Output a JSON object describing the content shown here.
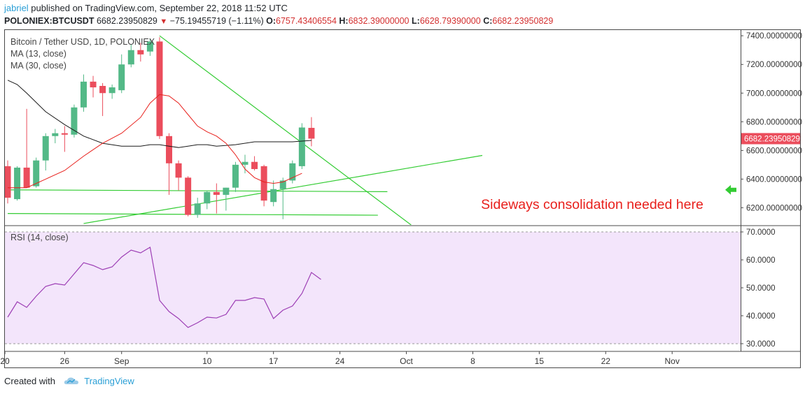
{
  "header": {
    "user": "jabriel",
    "published": " published on TradingView.com, September 22, 2018 11:52 UTC",
    "symbol": "POLONIEX:BTCUSDT",
    "last": "6682.23950829",
    "change": "−75.19455719 (−1.11%)",
    "o_label": "O:",
    "o_val": "6757.43406554",
    "h_label": "H:",
    "h_val": "6832.39000000",
    "l_label": "L:",
    "l_val": "6628.79390000",
    "c_label": "C:",
    "c_val": "6682.23950829"
  },
  "legend": {
    "title": "Bitcoin / Tether USD, 1D, POLONIEX",
    "ma13": "MA (13, close)",
    "ma30": "MA (30, close)",
    "rsi": "RSI (14, close)"
  },
  "annotation": "Sideways consolidation needed here",
  "footer": {
    "created": "Created with",
    "brand": "TradingView"
  },
  "colors": {
    "up": "#53b987",
    "down": "#eb4d5c",
    "ma13": "#e8201c",
    "ma30": "#1a1a1a",
    "trend": "#33cc33",
    "rsi": "#9d3fb5",
    "rsi_band": "#f3e5fb",
    "annotation": "#e8201c",
    "arrow": "#33cc33"
  },
  "chart_data": {
    "type": "candlestick",
    "price_axis": {
      "ylim": [
        6080,
        7440
      ],
      "ticks": [
        "7400.00000000",
        "7200.00000000",
        "7000.00000000",
        "6800.00000000",
        "6600.00000000",
        "6400.00000000",
        "6200.00000000"
      ],
      "last_label": "6682.23950829"
    },
    "rsi_axis": {
      "ylim": [
        28,
        72
      ],
      "ticks": [
        "70.0000",
        "60.0000",
        "50.0000",
        "40.0000",
        "30.0000"
      ],
      "band": [
        30,
        70
      ]
    },
    "x_ticks": [
      "20",
      "26",
      "Sep",
      "10",
      "17",
      "24",
      "Oct",
      "8",
      "15",
      "22",
      "Nov"
    ],
    "x_tick_days": [
      0,
      6,
      12,
      21,
      28,
      35,
      42,
      49,
      56,
      63,
      70
    ],
    "candles": [
      {
        "d": 0,
        "o": 6490,
        "h": 6530,
        "l": 6230,
        "c": 6270
      },
      {
        "d": 1,
        "o": 6260,
        "h": 6490,
        "l": 6250,
        "c": 6480
      },
      {
        "d": 2,
        "o": 6480,
        "h": 6890,
        "l": 6350,
        "c": 6340
      },
      {
        "d": 3,
        "o": 6350,
        "h": 6550,
        "l": 6340,
        "c": 6530
      },
      {
        "d": 4,
        "o": 6530,
        "h": 6720,
        "l": 6460,
        "c": 6700
      },
      {
        "d": 5,
        "o": 6700,
        "h": 6750,
        "l": 6650,
        "c": 6720
      },
      {
        "d": 6,
        "o": 6720,
        "h": 6770,
        "l": 6590,
        "c": 6710
      },
      {
        "d": 7,
        "o": 6710,
        "h": 6920,
        "l": 6690,
        "c": 6900
      },
      {
        "d": 8,
        "o": 6900,
        "h": 7130,
        "l": 6870,
        "c": 7080
      },
      {
        "d": 9,
        "o": 7080,
        "h": 7120,
        "l": 6970,
        "c": 7040
      },
      {
        "d": 10,
        "o": 7050,
        "h": 7070,
        "l": 6840,
        "c": 7000
      },
      {
        "d": 11,
        "o": 7000,
        "h": 7060,
        "l": 6960,
        "c": 7040
      },
      {
        "d": 12,
        "o": 7020,
        "h": 7270,
        "l": 7000,
        "c": 7200
      },
      {
        "d": 13,
        "o": 7200,
        "h": 7340,
        "l": 7180,
        "c": 7300
      },
      {
        "d": 14,
        "o": 7300,
        "h": 7350,
        "l": 7220,
        "c": 7270
      },
      {
        "d": 15,
        "o": 7290,
        "h": 7380,
        "l": 7260,
        "c": 7360
      },
      {
        "d": 16,
        "o": 7360,
        "h": 7390,
        "l": 6680,
        "c": 6700
      },
      {
        "d": 17,
        "o": 6700,
        "h": 6720,
        "l": 6290,
        "c": 6510
      },
      {
        "d": 18,
        "o": 6510,
        "h": 6530,
        "l": 6320,
        "c": 6410
      },
      {
        "d": 19,
        "o": 6410,
        "h": 6420,
        "l": 6140,
        "c": 6150
      },
      {
        "d": 20,
        "o": 6150,
        "h": 6270,
        "l": 6130,
        "c": 6230
      },
      {
        "d": 21,
        "o": 6230,
        "h": 6320,
        "l": 6190,
        "c": 6310
      },
      {
        "d": 22,
        "o": 6310,
        "h": 6370,
        "l": 6160,
        "c": 6290
      },
      {
        "d": 23,
        "o": 6290,
        "h": 6340,
        "l": 6180,
        "c": 6340
      },
      {
        "d": 24,
        "o": 6340,
        "h": 6520,
        "l": 6310,
        "c": 6500
      },
      {
        "d": 25,
        "o": 6500,
        "h": 6570,
        "l": 6440,
        "c": 6520
      },
      {
        "d": 26,
        "o": 6520,
        "h": 6560,
        "l": 6460,
        "c": 6470
      },
      {
        "d": 27,
        "o": 6490,
        "h": 6500,
        "l": 6210,
        "c": 6250
      },
      {
        "d": 28,
        "o": 6240,
        "h": 6390,
        "l": 6210,
        "c": 6330
      },
      {
        "d": 29,
        "o": 6330,
        "h": 6410,
        "l": 6120,
        "c": 6390
      },
      {
        "d": 30,
        "o": 6390,
        "h": 6530,
        "l": 6370,
        "c": 6510
      },
      {
        "d": 31,
        "o": 6490,
        "h": 6790,
        "l": 6470,
        "c": 6760
      },
      {
        "d": 32,
        "o": 6757.43,
        "h": 6832.39,
        "l": 6628.79,
        "c": 6682.24
      }
    ],
    "ma13": [
      [
        0,
        6340
      ],
      [
        2,
        6340
      ],
      [
        4,
        6400
      ],
      [
        6,
        6460
      ],
      [
        8,
        6560
      ],
      [
        10,
        6650
      ],
      [
        12,
        6720
      ],
      [
        14,
        6830
      ],
      [
        15,
        6930
      ],
      [
        16,
        6990
      ],
      [
        17,
        6980
      ],
      [
        18,
        6930
      ],
      [
        19,
        6850
      ],
      [
        20,
        6770
      ],
      [
        21,
        6730
      ],
      [
        22,
        6700
      ],
      [
        23,
        6650
      ],
      [
        24,
        6570
      ],
      [
        25,
        6470
      ],
      [
        26,
        6410
      ],
      [
        27,
        6380
      ],
      [
        28,
        6370
      ],
      [
        29,
        6380
      ],
      [
        30,
        6410
      ],
      [
        31,
        6440
      ]
    ],
    "ma30": [
      [
        0,
        7090
      ],
      [
        1,
        7060
      ],
      [
        2,
        7000
      ],
      [
        4,
        6870
      ],
      [
        6,
        6780
      ],
      [
        8,
        6700
      ],
      [
        10,
        6650
      ],
      [
        12,
        6630
      ],
      [
        14,
        6630
      ],
      [
        15,
        6640
      ],
      [
        16,
        6640
      ],
      [
        17,
        6630
      ],
      [
        18,
        6620
      ],
      [
        19,
        6630
      ],
      [
        20,
        6640
      ],
      [
        21,
        6640
      ],
      [
        22,
        6630
      ],
      [
        24,
        6640
      ],
      [
        26,
        6660
      ],
      [
        28,
        6660
      ],
      [
        30,
        6660
      ],
      [
        32,
        6670
      ]
    ],
    "rsi": [
      [
        0,
        39.5
      ],
      [
        1,
        45
      ],
      [
        2,
        43
      ],
      [
        3,
        47
      ],
      [
        4,
        50.5
      ],
      [
        5,
        51.5
      ],
      [
        6,
        51
      ],
      [
        7,
        55
      ],
      [
        8,
        59
      ],
      [
        9,
        58
      ],
      [
        10,
        56.5
      ],
      [
        11,
        57.5
      ],
      [
        12,
        61
      ],
      [
        13,
        63.5
      ],
      [
        14,
        62.5
      ],
      [
        15,
        64.5
      ],
      [
        16,
        45.5
      ],
      [
        17,
        41.5
      ],
      [
        18,
        39
      ],
      [
        19,
        35.8
      ],
      [
        20,
        37.5
      ],
      [
        21,
        39.5
      ],
      [
        22,
        39.2
      ],
      [
        23,
        40.5
      ],
      [
        24,
        45.5
      ],
      [
        25,
        45.5
      ],
      [
        26,
        46.5
      ],
      [
        27,
        46
      ],
      [
        28,
        39
      ],
      [
        29,
        42
      ],
      [
        30,
        43.5
      ],
      [
        31,
        48
      ],
      [
        32,
        55.5
      ],
      [
        33,
        53
      ]
    ],
    "trendlines": [
      {
        "x1": 16,
        "y1": 7400,
        "x2": 42.5,
        "y2": 6080
      },
      {
        "x1": 0,
        "y1": 6325,
        "x2": 40,
        "y2": 6312
      },
      {
        "x1": 0,
        "y1": 6160,
        "x2": 39,
        "y2": 6148
      },
      {
        "x1": 8,
        "y1": 6090,
        "x2": 50,
        "y2": 6565
      }
    ],
    "arrow_at": 6325
  }
}
